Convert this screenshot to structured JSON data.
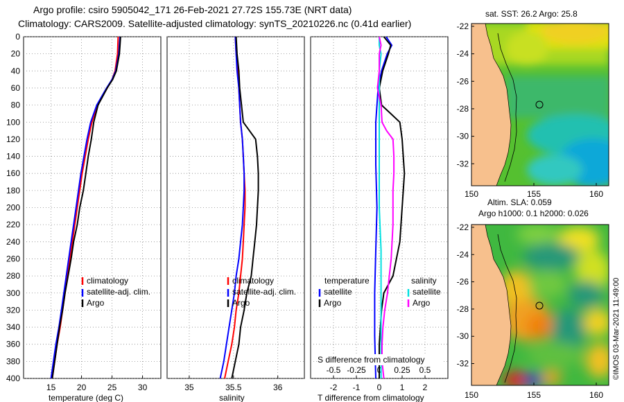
{
  "header": {
    "line1": "Argo profile: csiro 5905042_171 26-Feb-2021 27.72S 155.73E (NRT data)",
    "line2": "Climatology: CARS2009. Satellite-adjusted climatology: synTS_20210226.nc (0.41d earlier)"
  },
  "watermark": "©IMOS 03-Mar-2021 11:49:00",
  "colors": {
    "climatology": "#ff0000",
    "satellite": "#0000ff",
    "argo": "#000000",
    "s_satellite": "#00e0e0",
    "s_argo": "#ff00ff",
    "land": "#f7c08d"
  },
  "chart_data": [
    {
      "id": "temperature",
      "type": "line",
      "xlabel": "temperature (deg C)",
      "ylabel": "",
      "xlim": [
        10.5,
        33
      ],
      "ylim": [
        400,
        0
      ],
      "xticks": [
        15,
        20,
        25,
        30
      ],
      "yticks": [
        0,
        20,
        40,
        60,
        80,
        100,
        120,
        140,
        160,
        180,
        200,
        220,
        240,
        260,
        280,
        300,
        320,
        340,
        360,
        380,
        400
      ],
      "legend": [
        "climatology",
        "satellite-adj. clim.",
        "Argo"
      ],
      "series": [
        {
          "name": "climatology",
          "color": "#ff0000",
          "depth": [
            0,
            20,
            40,
            50,
            60,
            80,
            100,
            120,
            140,
            160,
            180,
            200,
            220,
            240,
            260,
            280,
            300,
            320,
            340,
            360,
            380,
            400
          ],
          "values": [
            26.0,
            25.9,
            25.5,
            25.0,
            24.2,
            22.6,
            21.7,
            21.1,
            20.6,
            20.1,
            19.7,
            19.3,
            18.9,
            18.5,
            18.1,
            17.7,
            17.3,
            16.9,
            16.5,
            16.0,
            15.6,
            15.2
          ]
        },
        {
          "name": "satellite-adj. clim.",
          "color": "#0000ff",
          "depth": [
            0,
            20,
            40,
            50,
            60,
            80,
            100,
            120,
            140,
            160,
            180,
            200,
            220,
            240,
            260,
            280,
            300,
            320,
            340,
            360,
            380,
            400
          ],
          "values": [
            26.3,
            26.1,
            25.6,
            25.0,
            24.1,
            22.5,
            21.5,
            20.9,
            20.4,
            19.9,
            19.5,
            19.1,
            18.7,
            18.3,
            17.9,
            17.5,
            17.1,
            16.7,
            16.3,
            15.8,
            15.4,
            15.0
          ]
        },
        {
          "name": "Argo",
          "color": "#000000",
          "depth": [
            0,
            20,
            40,
            50,
            60,
            80,
            100,
            120,
            140,
            160,
            180,
            200,
            220,
            240,
            260,
            280,
            300,
            320,
            340,
            360,
            380,
            400
          ],
          "values": [
            26.4,
            26.2,
            25.7,
            25.1,
            24.2,
            22.7,
            22.0,
            21.6,
            21.1,
            20.7,
            20.3,
            19.7,
            19.3,
            18.7,
            18.3,
            17.8,
            17.3,
            16.9,
            16.4,
            16.0,
            15.6,
            15.2
          ]
        }
      ]
    },
    {
      "id": "salinity",
      "type": "line",
      "xlabel": "salinity",
      "xlim": [
        34.75,
        36.3
      ],
      "ylim": [
        400,
        0
      ],
      "xticks": [
        35,
        35.5,
        36
      ],
      "legend": [
        "climatology",
        "satellite-adj. clim.",
        "Argo"
      ],
      "series": [
        {
          "name": "climatology",
          "color": "#ff0000",
          "depth": [
            0,
            20,
            40,
            60,
            80,
            100,
            120,
            140,
            160,
            180,
            200,
            220,
            240,
            260,
            280,
            300,
            320,
            340,
            360,
            380,
            400
          ],
          "values": [
            35.52,
            35.53,
            35.55,
            35.56,
            35.57,
            35.58,
            35.6,
            35.61,
            35.62,
            35.63,
            35.63,
            35.62,
            35.61,
            35.6,
            35.58,
            35.56,
            35.53,
            35.51,
            35.48,
            35.44,
            35.4
          ]
        },
        {
          "name": "satellite-adj. clim.",
          "color": "#0000ff",
          "depth": [
            0,
            20,
            40,
            60,
            80,
            100,
            120,
            140,
            160,
            180,
            200,
            220,
            240,
            260,
            280,
            300,
            320,
            340,
            360,
            380,
            400
          ],
          "values": [
            35.52,
            35.53,
            35.54,
            35.56,
            35.57,
            35.58,
            35.6,
            35.61,
            35.62,
            35.62,
            35.61,
            35.6,
            35.58,
            35.56,
            35.53,
            35.51,
            35.48,
            35.45,
            35.42,
            35.39,
            35.35
          ]
        },
        {
          "name": "Argo",
          "color": "#000000",
          "depth": [
            0,
            20,
            40,
            60,
            80,
            100,
            110,
            120,
            140,
            160,
            180,
            200,
            220,
            240,
            260,
            280,
            300,
            320,
            340,
            360,
            380,
            400
          ],
          "values": [
            35.53,
            35.54,
            35.56,
            35.57,
            35.59,
            35.61,
            35.68,
            35.75,
            35.77,
            35.78,
            35.78,
            35.77,
            35.76,
            35.74,
            35.72,
            35.7,
            35.65,
            35.62,
            35.58,
            35.56,
            35.52,
            35.48
          ]
        }
      ]
    },
    {
      "id": "difference",
      "type": "line",
      "xlabel": "T difference from climatology",
      "secondary_xlabel": "S difference from climatology",
      "xlim": [
        -3,
        3
      ],
      "ylim": [
        400,
        0
      ],
      "xticks": [
        -2,
        -1,
        0,
        1,
        2
      ],
      "xticklabels": [
        "-2",
        "-1",
        "0",
        "1",
        "2"
      ],
      "secondary_xticks": [
        -0.5,
        -0.25,
        0,
        0.25,
        0.5
      ],
      "secondary_xticklabels": [
        "-0.5",
        "-0.25",
        "0",
        "0.25",
        "0.5"
      ],
      "legend_temperature_heading": "temperature",
      "legend_salinity_heading": "salinity",
      "legend_temperature": [
        "satellite",
        "Argo"
      ],
      "legend_salinity": [
        "satellite",
        "Argo"
      ],
      "series": [
        {
          "name": "T satellite",
          "color": "#0000ff",
          "depth": [
            0,
            10,
            20,
            40,
            60,
            80,
            100,
            150,
            200,
            250,
            300,
            350,
            400
          ],
          "values": [
            0.3,
            0.55,
            0.35,
            0.1,
            -0.05,
            -0.1,
            -0.15,
            -0.15,
            -0.1,
            -0.15,
            -0.2,
            -0.2,
            -0.15
          ]
        },
        {
          "name": "T Argo",
          "color": "#000000",
          "depth": [
            0,
            10,
            20,
            40,
            60,
            80,
            90,
            100,
            120,
            140,
            160,
            200,
            240,
            280,
            300,
            320,
            360,
            400
          ],
          "values": [
            0.2,
            0.5,
            0.4,
            0.15,
            0.0,
            0.1,
            0.5,
            0.9,
            1.0,
            1.05,
            1.1,
            1.0,
            0.9,
            0.6,
            0.2,
            0.1,
            0.0,
            0.0
          ]
        },
        {
          "name": "S satellite",
          "color": "#00e0e0",
          "depth": [
            0,
            10,
            20,
            40,
            60,
            80,
            100,
            150,
            200,
            250,
            300,
            350,
            400
          ],
          "values": [
            0.0,
            0.0,
            0.02,
            0.0,
            0.0,
            0.0,
            0.0,
            0.0,
            0.0,
            0.02,
            0.02,
            0.02,
            0.02
          ]
        },
        {
          "name": "S Argo",
          "color": "#ff00ff",
          "depth": [
            0,
            10,
            20,
            40,
            60,
            70,
            80,
            100,
            110,
            120,
            140,
            160,
            180,
            200,
            220,
            240,
            260,
            280,
            300,
            320,
            340,
            360,
            380,
            400
          ],
          "values": [
            0.0,
            0.02,
            0.0,
            0.0,
            -0.02,
            0.0,
            0.02,
            0.03,
            0.08,
            0.15,
            0.16,
            0.16,
            0.15,
            0.15,
            0.15,
            0.14,
            0.13,
            0.11,
            0.09,
            0.06,
            0.04,
            0.03,
            0.03,
            0.05
          ]
        }
      ]
    },
    {
      "id": "sst_map",
      "type": "heatmap",
      "title": "sat. SST: 26.2 Argo: 25.8",
      "xticks": [
        150,
        155,
        160
      ],
      "yticks": [
        -22,
        -24,
        -26,
        -28,
        -30,
        -32
      ],
      "xlim": [
        150,
        161
      ],
      "ylim": [
        -33.6,
        -21.8
      ],
      "argo_position": {
        "lon": 155.73,
        "lat": -27.72
      }
    },
    {
      "id": "sla_map",
      "type": "heatmap",
      "title_line1": "Altim. SLA: 0.059",
      "title_line2": "Argo h1000: 0.1 h2000: 0.026",
      "xticks": [
        150,
        155,
        160
      ],
      "yticks": [
        -22,
        -24,
        -26,
        -28,
        -30,
        -32
      ],
      "xlim": [
        150,
        161
      ],
      "ylim": [
        -33.6,
        -21.8
      ],
      "argo_position": {
        "lon": 155.73,
        "lat": -27.72
      }
    }
  ]
}
